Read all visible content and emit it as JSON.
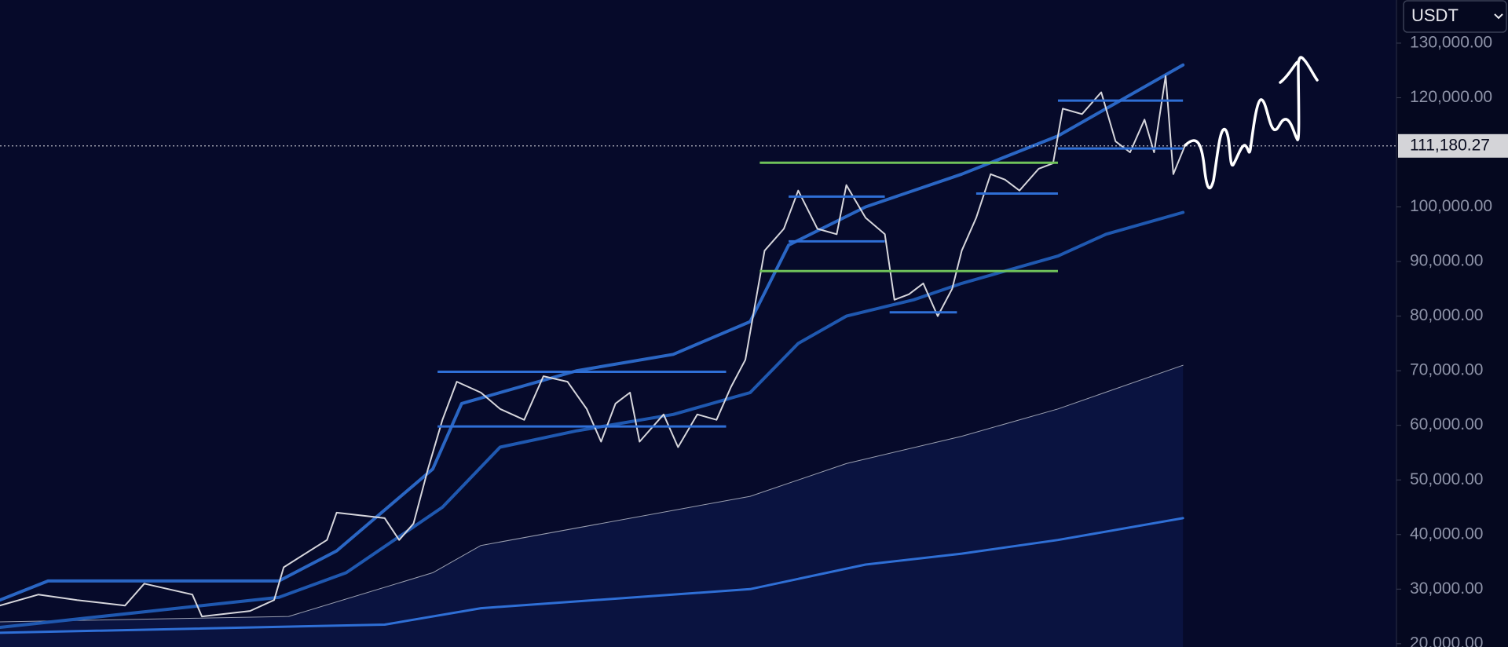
{
  "chart_data": {
    "type": "line",
    "currency": "USDT",
    "xlim": [
      0,
      145.2
    ],
    "ylim": [
      19400,
      137900
    ],
    "yticks": [
      {
        "value": 130000,
        "label": "130,000.00"
      },
      {
        "value": 120000,
        "label": "120,000.00"
      },
      {
        "value": 100000,
        "label": "100,000.00"
      },
      {
        "value": 90000,
        "label": "90,000.00"
      },
      {
        "value": 80000,
        "label": "80,000.00"
      },
      {
        "value": 70000,
        "label": "70,000.00"
      },
      {
        "value": 60000,
        "label": "60,000.00"
      },
      {
        "value": 50000,
        "label": "50,000.00"
      },
      {
        "value": 40000,
        "label": "40,000.00"
      },
      {
        "value": 30000,
        "label": "30,000.00"
      },
      {
        "value": 20000,
        "label": "20,000.00"
      }
    ],
    "last_price": {
      "value": 111180.27,
      "label": "111,180.27"
    },
    "series": [
      {
        "color": "#9a9fb0",
        "width": 1,
        "fill": true,
        "x": [
          0,
          30,
          45,
          50,
          78,
          88,
          100,
          110,
          123
        ],
        "values": [
          24000,
          25000,
          33000,
          38000,
          47000,
          53000,
          58000,
          63000,
          71000
        ]
      },
      {
        "color": "#2f6fd6",
        "width": 3,
        "x": [
          0,
          40,
          50,
          78,
          90,
          100,
          110,
          123
        ],
        "values": [
          22000,
          23500,
          26500,
          30000,
          34500,
          36500,
          39000,
          43000
        ]
      },
      {
        "color": "#1f58b0",
        "width": 4,
        "x": [
          0,
          29,
          36,
          46,
          52,
          60,
          70,
          78,
          83,
          88,
          95,
          100,
          110,
          115,
          123
        ],
        "values": [
          23000,
          28500,
          33000,
          45000,
          56000,
          59000,
          62000,
          66000,
          75000,
          80000,
          83000,
          86000,
          91000,
          95000,
          99000
        ]
      },
      {
        "color": "#2a66c4",
        "width": 4,
        "x": [
          0,
          5,
          29,
          35,
          45,
          48,
          60,
          70,
          78,
          82,
          90,
          100,
          110,
          115,
          123
        ],
        "values": [
          28000,
          31500,
          31500,
          37000,
          52000,
          64000,
          70000,
          73000,
          79000,
          93000,
          100000,
          106000,
          113000,
          118000,
          126000
        ]
      },
      {
        "color": "#d6d6dc",
        "width": 2,
        "x": [
          0,
          4,
          8,
          13,
          15,
          20,
          21,
          26,
          28.5,
          29.5,
          34,
          35,
          40,
          41.5,
          43,
          44.5,
          46,
          47.5,
          50,
          52,
          54.5,
          56.5,
          59,
          61,
          62.5,
          64,
          65.5,
          66.5,
          69,
          70.5,
          72.5,
          74.5,
          76,
          77.5,
          78.5,
          79.5,
          81.5,
          83,
          85,
          87,
          88,
          90,
          92,
          93,
          94.5,
          96,
          97.5,
          99,
          100,
          101.5,
          103,
          104.5,
          106,
          108,
          109.5,
          110.5,
          112.5,
          114.5,
          116,
          117.5,
          119,
          120,
          121.2,
          122,
          123.2
        ],
        "values": [
          27000,
          29000,
          28000,
          27000,
          31000,
          29000,
          25000,
          26000,
          28000,
          34000,
          39000,
          44000,
          43000,
          39000,
          42000,
          52000,
          61000,
          68000,
          66000,
          63000,
          61000,
          69000,
          68000,
          63000,
          57000,
          64000,
          66000,
          57000,
          62000,
          56000,
          62000,
          61000,
          67000,
          72000,
          82000,
          92000,
          96000,
          103000,
          96000,
          95000,
          104000,
          98000,
          95000,
          83000,
          84000,
          86000,
          80000,
          85000,
          92000,
          98000,
          106000,
          105000,
          103000,
          107000,
          108000,
          118000,
          117000,
          121000,
          112000,
          110000,
          116000,
          110000,
          124000,
          106000,
          111180.27
        ]
      }
    ],
    "levels": [
      {
        "value": 69800,
        "x": [
          45.5,
          75.5
        ],
        "color": "#2f6fd6"
      },
      {
        "value": 59800,
        "x": [
          45.5,
          75.5
        ],
        "color": "#2f6fd6"
      },
      {
        "value": 108100,
        "x": [
          79,
          110
        ],
        "color": "#6fc25a"
      },
      {
        "value": 88250,
        "x": [
          79,
          110
        ],
        "color": "#6fc25a"
      },
      {
        "value": 101900,
        "x": [
          82,
          92
        ],
        "color": "#2f6fd6"
      },
      {
        "value": 93700,
        "x": [
          82,
          92
        ],
        "color": "#2f6fd6"
      },
      {
        "value": 80700,
        "x": [
          92.5,
          99.5
        ],
        "color": "#2f6fd6"
      },
      {
        "value": 102450,
        "x": [
          101.5,
          110
        ],
        "color": "#2f6fd6"
      },
      {
        "value": 119470,
        "x": [
          110,
          123
        ],
        "color": "#2f6fd6"
      },
      {
        "value": 110700,
        "x": [
          110,
          123
        ],
        "color": "#2f6fd6"
      }
    ]
  }
}
